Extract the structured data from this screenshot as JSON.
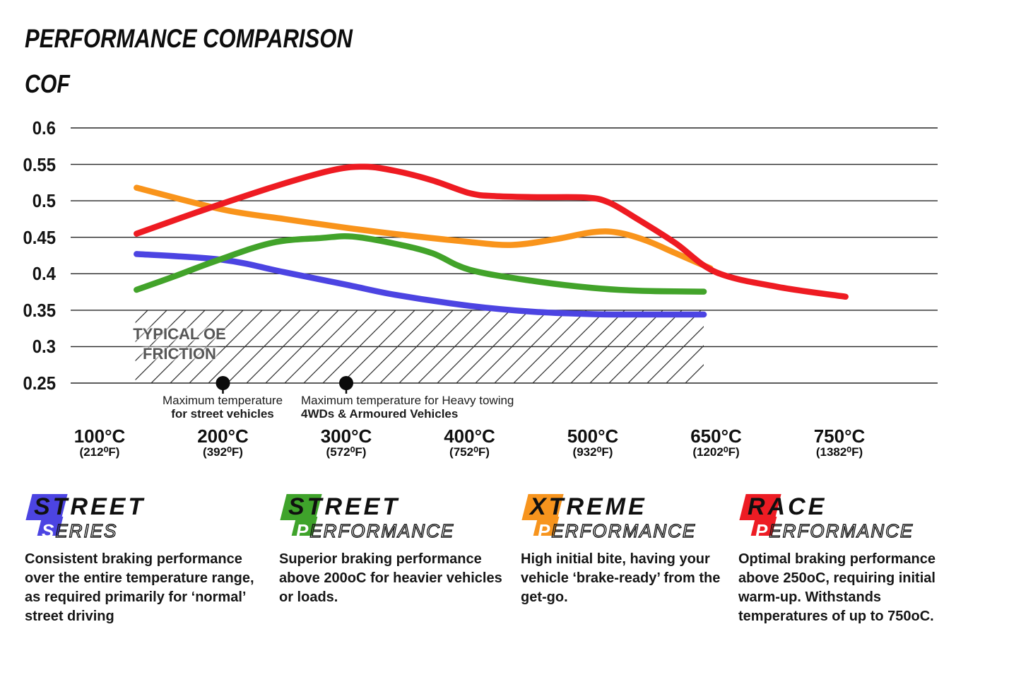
{
  "header": {
    "title": "PERFORMANCE COMPARISON",
    "y_axis_name": "COF"
  },
  "chart_data": {
    "type": "line",
    "title": "PERFORMANCE COMPARISON",
    "ylabel": "COF",
    "xlabel": "",
    "grid": true,
    "legend_position": "none",
    "ylim": [
      0.25,
      0.6
    ],
    "y_ticks": [
      {
        "value": 0.6,
        "label": "0.6"
      },
      {
        "value": 0.55,
        "label": "0.55"
      },
      {
        "value": 0.5,
        "label": "0.5"
      },
      {
        "value": 0.45,
        "label": "0.45"
      },
      {
        "value": 0.4,
        "label": "0.4"
      },
      {
        "value": 0.35,
        "label": "0.35"
      },
      {
        "value": 0.3,
        "label": "0.3"
      },
      {
        "value": 0.25,
        "label": "0.25"
      }
    ],
    "x_values": [
      100,
      200,
      300,
      400,
      500,
      650,
      750
    ],
    "x_tick_labels": [
      {
        "c": "100°C",
        "f": "(212⁰F)"
      },
      {
        "c": "200°C",
        "f": "(392⁰F)"
      },
      {
        "c": "300°C",
        "f": "(572⁰F)"
      },
      {
        "c": "400°C",
        "f": "(752⁰F)"
      },
      {
        "c": "500°C",
        "f": "(932⁰F)"
      },
      {
        "c": "650°C",
        "f": "(1202⁰F)"
      },
      {
        "c": "750°C",
        "f": "(1382⁰F)"
      }
    ],
    "series": [
      {
        "name": "Street Series",
        "color": "#4c44e2",
        "points": [
          [
            130,
            0.427
          ],
          [
            200,
            0.419
          ],
          [
            250,
            0.402
          ],
          [
            300,
            0.385
          ],
          [
            340,
            0.371
          ],
          [
            400,
            0.356
          ],
          [
            450,
            0.348
          ],
          [
            500,
            0.3445
          ],
          [
            560,
            0.344
          ],
          [
            635,
            0.344
          ]
        ]
      },
      {
        "name": "Street Performance",
        "color": "#42a32a",
        "points": [
          [
            130,
            0.378
          ],
          [
            160,
            0.396
          ],
          [
            195,
            0.418
          ],
          [
            240,
            0.4425
          ],
          [
            280,
            0.449
          ],
          [
            305,
            0.451
          ],
          [
            340,
            0.441
          ],
          [
            370,
            0.428
          ],
          [
            400,
            0.4055
          ],
          [
            450,
            0.3905
          ],
          [
            500,
            0.3805
          ],
          [
            560,
            0.3765
          ],
          [
            635,
            0.3755
          ]
        ]
      },
      {
        "name": "Xtreme Performance",
        "color": "#f9941b",
        "points": [
          [
            130,
            0.518
          ],
          [
            200,
            0.488
          ],
          [
            250,
            0.475
          ],
          [
            300,
            0.463
          ],
          [
            340,
            0.4545
          ],
          [
            400,
            0.4435
          ],
          [
            435,
            0.4395
          ],
          [
            470,
            0.4475
          ],
          [
            500,
            0.457
          ],
          [
            530,
            0.4565
          ],
          [
            565,
            0.4455
          ],
          [
            600,
            0.4285
          ],
          [
            643,
            0.4075
          ]
        ]
      },
      {
        "name": "Race Performance",
        "color": "#ee1b22",
        "points": [
          [
            130,
            0.455
          ],
          [
            170,
            0.479
          ],
          [
            200,
            0.4965
          ],
          [
            250,
            0.524
          ],
          [
            290,
            0.5425
          ],
          [
            315,
            0.5468
          ],
          [
            340,
            0.541
          ],
          [
            370,
            0.528
          ],
          [
            400,
            0.5105
          ],
          [
            420,
            0.5065
          ],
          [
            455,
            0.505
          ],
          [
            495,
            0.5045
          ],
          [
            520,
            0.4975
          ],
          [
            555,
            0.4745
          ],
          [
            600,
            0.4425
          ],
          [
            650,
            0.402
          ],
          [
            700,
            0.382
          ],
          [
            755,
            0.3685
          ]
        ]
      }
    ],
    "oe_region": {
      "label": "TYPICAL OE FRICTION",
      "label_line1": "TYPICAL OE",
      "label_line2": "FRICTION",
      "t_min": 129,
      "t_max": 635,
      "cof_min": 0.25,
      "cof_max": 0.35
    },
    "markers": [
      {
        "temp": 200,
        "cof": 0.25,
        "align": "center",
        "line1": "Maximum temperature",
        "line2": "for street vehicles"
      },
      {
        "temp": 300,
        "cof": 0.25,
        "align": "left",
        "line1": "Maximum temperature for Heavy towing",
        "line2": "4WDs & Armoured Vehicles"
      }
    ]
  },
  "brands": [
    {
      "word1": "STREET",
      "word2_first": "S",
      "word2_rest": "ERIES",
      "color": "#4c44e2",
      "description": "Consistent braking performance over the entire temperature range, as required primarily for ‘normal’ street driving"
    },
    {
      "word1": "STREET",
      "word2_first": "P",
      "word2_rest": "ERFORMANCE",
      "color": "#3fa32b",
      "description": "Superior braking performance above 200oC for heavier vehicles or loads."
    },
    {
      "word1": "XTREME",
      "word2_first": "P",
      "word2_rest": "ERFORMANCE",
      "color": "#f7941d",
      "description": "High initial bite, having your vehicle ‘brake-ready’ from the get-go."
    },
    {
      "word1": "RACE",
      "word2_first": "P",
      "word2_rest": "ERFORMANCE",
      "color": "#ed1c24",
      "description": "Optimal braking performance above 250oC, requiring initial warm-up. Withstands temperatures of up to 750oC."
    }
  ]
}
